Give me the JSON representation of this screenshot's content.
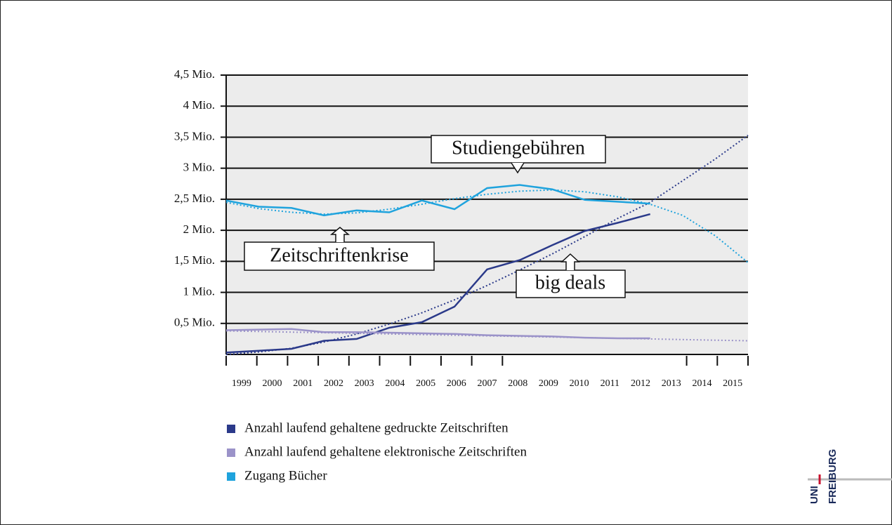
{
  "chart_data": {
    "type": "line",
    "categories": [
      "1999",
      "2000",
      "2001",
      "2002",
      "2003",
      "2004",
      "2005",
      "2006",
      "2007",
      "2008",
      "2009",
      "2010",
      "2011",
      "2012",
      "2013",
      "2014",
      "2015"
    ],
    "series": [
      {
        "name": "Anzahl laufend gehaltene gedruckte Zeitschriften",
        "color": "#2b3a8a",
        "values": [
          0.03,
          0.06,
          0.09,
          0.22,
          0.25,
          0.43,
          0.52,
          0.77,
          1.37,
          1.52,
          1.76,
          1.99,
          2.12,
          2.26,
          null,
          null,
          null
        ],
        "trend": [
          0,
          0.04,
          0.1,
          0.2,
          0.33,
          0.49,
          0.67,
          0.88,
          1.11,
          1.36,
          1.62,
          1.9,
          2.19,
          2.45,
          2.8,
          3.15,
          3.53
        ]
      },
      {
        "name": "Anzahl laufend gehaltene elektronische Zeitschriften",
        "color": "#9b93c9",
        "values": [
          0.39,
          0.4,
          0.41,
          0.36,
          0.36,
          0.35,
          0.34,
          0.33,
          0.31,
          0.3,
          0.29,
          0.27,
          0.26,
          0.26,
          null,
          null,
          null
        ],
        "trend": [
          0.38,
          0.37,
          0.36,
          0.35,
          0.34,
          0.33,
          0.32,
          0.31,
          0.3,
          0.29,
          0.28,
          0.27,
          0.26,
          0.25,
          0.24,
          0.23,
          0.22
        ]
      },
      {
        "name": "Zugang Bücher",
        "color": "#1fa3dd",
        "values": [
          2.48,
          2.38,
          2.36,
          2.24,
          2.32,
          2.29,
          2.48,
          2.34,
          2.68,
          2.73,
          2.66,
          2.49,
          2.46,
          2.43,
          null,
          null,
          null
        ],
        "trend": [
          2.45,
          2.35,
          2.29,
          2.26,
          2.28,
          2.34,
          2.42,
          2.51,
          2.58,
          2.63,
          2.65,
          2.62,
          2.54,
          2.42,
          2.24,
          1.91,
          1.48
        ]
      }
    ],
    "ylim": [
      0,
      4.5
    ],
    "yticks": [
      {
        "value": 0.5,
        "label": "0,5 Mio."
      },
      {
        "value": 1,
        "label": "1 Mio."
      },
      {
        "value": 1.5,
        "label": "1,5 Mio."
      },
      {
        "value": 2,
        "label": "2 Mio."
      },
      {
        "value": 2.5,
        "label": "2,5 Mio."
      },
      {
        "value": 3,
        "label": "3 Mio."
      },
      {
        "value": 3.5,
        "label": "3,5 Mio."
      },
      {
        "value": 4,
        "label": "4 Mio."
      },
      {
        "value": 4.5,
        "label": "4,5 Mio."
      }
    ],
    "grid": true,
    "annotations": [
      "Studiengebühren",
      "Zeitschriftenkrise",
      "big deals"
    ]
  },
  "logo": [
    "UNI",
    "FREIBURG"
  ]
}
